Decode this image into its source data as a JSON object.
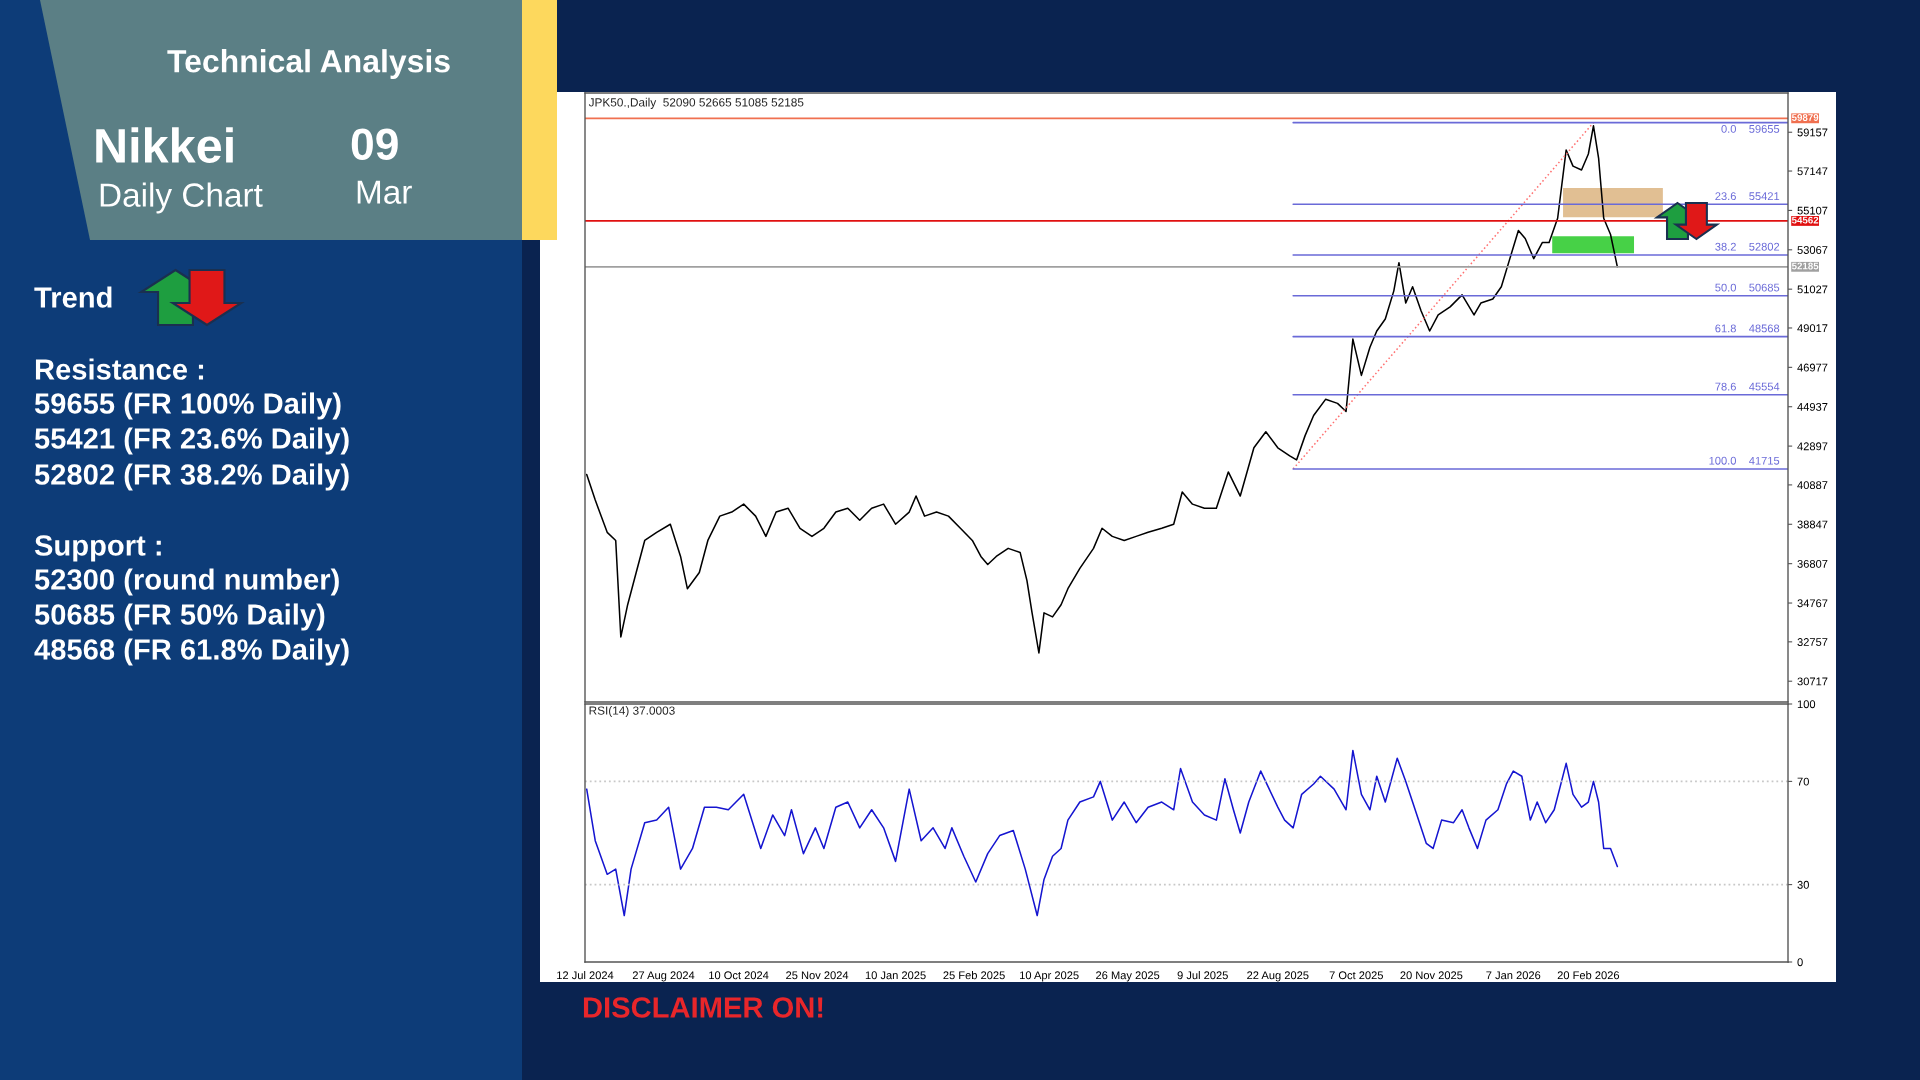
{
  "chart_data": [
    {
      "type": "other",
      "title": "Technical Analysis",
      "annotations": [
        "Nikkei",
        "Daily Chart",
        "09",
        "Mar",
        "Trend",
        "Resistance :",
        "59655 (FR 100% Daily)",
        "55421 (FR 23.6% Daily)",
        "52802 (FR 38.2% Daily)",
        "Support :",
        "52300 (round number)",
        "50685 (FR 50% Daily)",
        "48568 (FR 61.8% Daily)"
      ]
    },
    {
      "type": "line",
      "title": "JPK50.,Daily  52090 52665 51085 52185",
      "tick_labels": "y",
      "xlim": [
        "2024-07-12",
        "2026-06-17"
      ],
      "ylim": [
        29640,
        61190
      ],
      "yticks": [
        30717,
        32757,
        34767,
        36807,
        38847,
        40887,
        42897,
        44937,
        46977,
        49017,
        51027,
        53067,
        55107,
        57147,
        59157
      ],
      "series": [
        {
          "type": "line",
          "color": "#000000",
          "line_style": "solid",
          "x": [
            "2024-07-13",
            "2024-07-18",
            "2024-07-25",
            "2024-07-30",
            "2024-08-02",
            "2024-08-06",
            "2024-08-11",
            "2024-08-16",
            "2024-08-23",
            "2024-08-31",
            "2024-09-06",
            "2024-09-10",
            "2024-09-17",
            "2024-09-22",
            "2024-09-29",
            "2024-10-06",
            "2024-10-13",
            "2024-10-20",
            "2024-10-26",
            "2024-11-01",
            "2024-11-08",
            "2024-11-15",
            "2024-11-22",
            "2024-11-29",
            "2024-12-06",
            "2024-12-13",
            "2024-12-20",
            "2024-12-27",
            "2025-01-03",
            "2025-01-10",
            "2025-01-18",
            "2025-01-22",
            "2025-01-27",
            "2025-02-03",
            "2025-02-10",
            "2025-02-17",
            "2025-02-24",
            "2025-03-01",
            "2025-03-05",
            "2025-03-10",
            "2025-03-17",
            "2025-03-24",
            "2025-03-28",
            "2025-03-31",
            "2025-04-04",
            "2025-04-07",
            "2025-04-12",
            "2025-04-17",
            "2025-04-21",
            "2025-04-28",
            "2025-05-06",
            "2025-05-11",
            "2025-05-17",
            "2025-05-24",
            "2025-05-31",
            "2025-06-07",
            "2025-06-15",
            "2025-06-22",
            "2025-06-27",
            "2025-07-03",
            "2025-07-10",
            "2025-07-17",
            "2025-07-24",
            "2025-07-31",
            "2025-08-08",
            "2025-08-15",
            "2025-08-22",
            "2025-08-29",
            "2025-09-02",
            "2025-09-07",
            "2025-09-12",
            "2025-09-19",
            "2025-09-26",
            "2025-10-01",
            "2025-10-05",
            "2025-10-10",
            "2025-10-15",
            "2025-10-19",
            "2025-10-24",
            "2025-10-29",
            "2025-11-01",
            "2025-11-05",
            "2025-11-09",
            "2025-11-14",
            "2025-11-19",
            "2025-11-24",
            "2025-12-01",
            "2025-12-08",
            "2025-12-15",
            "2025-12-19",
            "2025-12-26",
            "2025-12-31",
            "2026-01-05",
            "2026-01-10",
            "2026-01-14",
            "2026-01-19",
            "2026-01-24",
            "2026-01-28",
            "2026-02-02",
            "2026-02-07",
            "2026-02-11",
            "2026-02-16",
            "2026-02-20",
            "2026-02-23",
            "2026-02-26",
            "2026-03-01",
            "2026-03-05",
            "2026-03-09"
          ],
          "values": [
            41430,
            40100,
            38430,
            38010,
            33010,
            34680,
            36350,
            38010,
            38430,
            38850,
            37180,
            35510,
            36350,
            38010,
            39270,
            39480,
            39890,
            39270,
            38220,
            39480,
            39680,
            38640,
            38220,
            38640,
            39480,
            39680,
            39060,
            39680,
            39890,
            38850,
            39480,
            40310,
            39270,
            39480,
            39270,
            38640,
            38010,
            37180,
            36760,
            37180,
            37600,
            37390,
            35930,
            34260,
            32180,
            34260,
            34050,
            34680,
            35510,
            36560,
            37600,
            38640,
            38220,
            38010,
            38220,
            38430,
            38640,
            38850,
            40520,
            39890,
            39680,
            39680,
            41560,
            40310,
            42810,
            43640,
            42810,
            42390,
            42180,
            43440,
            44480,
            45320,
            45110,
            44690,
            48440,
            46560,
            48020,
            48860,
            49480,
            50940,
            52400,
            50310,
            51150,
            49900,
            48860,
            49690,
            50110,
            50730,
            49690,
            50310,
            50520,
            51150,
            52610,
            54070,
            53650,
            52610,
            53440,
            53440,
            54700,
            58240,
            57400,
            57200,
            58030,
            59490,
            57820,
            54700,
            53860,
            52185
          ]
        },
        {
          "type": "line",
          "color": "#ff7070",
          "line_style": "dotted",
          "x": [
            "2025-08-31",
            "2026-02-23"
          ],
          "values": [
            41715,
            59655
          ]
        },
        {
          "type": "line",
          "color": "#6a6ad8",
          "line_style": "solid",
          "name": "0.0    59655",
          "x": [
            "2025-08-31",
            "2026-06-17"
          ],
          "values": [
            59655,
            59655
          ]
        },
        {
          "type": "line",
          "color": "#6a6ad8",
          "line_style": "solid",
          "name": "23.6    55421",
          "x": [
            "2025-08-31",
            "2026-06-17"
          ],
          "values": [
            55421,
            55421
          ]
        },
        {
          "type": "line",
          "color": "#6a6ad8",
          "line_style": "solid",
          "name": "38.2    52802",
          "x": [
            "2025-08-31",
            "2026-06-17"
          ],
          "values": [
            52802,
            52802
          ]
        },
        {
          "type": "line",
          "color": "#6a6ad8",
          "line_style": "solid",
          "name": "50.0    50685",
          "x": [
            "2025-08-31",
            "2026-06-17"
          ],
          "values": [
            50685,
            50685
          ]
        },
        {
          "type": "line",
          "color": "#6a6ad8",
          "line_style": "solid",
          "name": "61.8    48568",
          "x": [
            "2025-08-31",
            "2026-06-17"
          ],
          "values": [
            48568,
            48568
          ]
        },
        {
          "type": "line",
          "color": "#6a6ad8",
          "line_style": "solid",
          "name": "78.6    45554",
          "x": [
            "2025-08-31",
            "2026-06-17"
          ],
          "values": [
            45554,
            45554
          ]
        },
        {
          "type": "line",
          "color": "#6a6ad8",
          "line_style": "solid",
          "name": "100.0    41715",
          "x": [
            "2025-08-31",
            "2026-06-17"
          ],
          "values": [
            41715,
            41715
          ]
        }
      ],
      "ref_lines": [
        {
          "axis": "y",
          "value": 59879,
          "label": "59879",
          "color": "#f07050",
          "line_style": "solid"
        },
        {
          "axis": "y",
          "value": 54562,
          "label": "54562",
          "color": "#e01010",
          "line_style": "solid"
        },
        {
          "axis": "y",
          "value": 52185,
          "label": "52185",
          "color": "#a0a0a0",
          "line_style": "solid"
        }
      ],
      "bands": [
        {
          "axis": "y",
          "from": 54747,
          "to": 56266,
          "color": "#deb887"
        },
        {
          "axis": "y",
          "from": 52894,
          "to": 53765,
          "color": "#33cc33"
        }
      ]
    },
    {
      "type": "line",
      "title": "RSI(14) 37.0003",
      "xlim": [
        "2024-07-12",
        "2026-06-17"
      ],
      "xticks": [
        {
          "value": "2024-07-12",
          "label": "12 Jul 2024"
        },
        {
          "value": "2024-08-27",
          "label": "27 Aug 2024"
        },
        {
          "value": "2024-10-10",
          "label": "10 Oct 2024"
        },
        {
          "value": "2024-11-25",
          "label": "25 Nov 2024"
        },
        {
          "value": "2025-01-10",
          "label": "10 Jan 2025"
        },
        {
          "value": "2025-02-25",
          "label": "25 Feb 2025"
        },
        {
          "value": "2025-04-10",
          "label": "10 Apr 2025"
        },
        {
          "value": "2025-05-26",
          "label": "26 May 2025"
        },
        {
          "value": "2025-07-09",
          "label": "9 Jul 2025"
        },
        {
          "value": "2025-08-22",
          "label": "22 Aug 2025"
        },
        {
          "value": "2025-10-07",
          "label": "7 Oct 2025"
        },
        {
          "value": "2025-11-20",
          "label": "20 Nov 2025"
        },
        {
          "value": "2026-01-07",
          "label": "7 Jan 2026"
        },
        {
          "value": "2026-02-20",
          "label": "20 Feb 2026"
        }
      ],
      "ylim": [
        0,
        100
      ],
      "yticks": [
        0,
        30,
        70,
        100
      ],
      "series": [
        {
          "type": "line",
          "color": "#1515d0",
          "line_style": "solid",
          "x": [
            "2024-07-13",
            "2024-07-18",
            "2024-07-25",
            "2024-07-30",
            "2024-08-04",
            "2024-08-08",
            "2024-08-16",
            "2024-08-23",
            "2024-08-30",
            "2024-09-06",
            "2024-09-13",
            "2024-09-20",
            "2024-09-27",
            "2024-10-04",
            "2024-10-13",
            "2024-10-23",
            "2024-10-30",
            "2024-11-06",
            "2024-11-10",
            "2024-11-17",
            "2024-11-24",
            "2024-11-29",
            "2024-12-06",
            "2024-12-13",
            "2024-12-20",
            "2024-12-27",
            "2025-01-03",
            "2025-01-10",
            "2025-01-18",
            "2025-01-25",
            "2025-02-01",
            "2025-02-08",
            "2025-02-12",
            "2025-02-19",
            "2025-02-26",
            "2025-03-05",
            "2025-03-12",
            "2025-03-20",
            "2025-03-27",
            "2025-04-03",
            "2025-04-07",
            "2025-04-12",
            "2025-04-17",
            "2025-04-21",
            "2025-04-28",
            "2025-05-06",
            "2025-05-10",
            "2025-05-17",
            "2025-05-24",
            "2025-05-31",
            "2025-06-07",
            "2025-06-15",
            "2025-06-22",
            "2025-06-26",
            "2025-07-03",
            "2025-07-10",
            "2025-07-17",
            "2025-07-22",
            "2025-07-27",
            "2025-07-31",
            "2025-08-05",
            "2025-08-12",
            "2025-08-17",
            "2025-08-22",
            "2025-08-26",
            "2025-08-31",
            "2025-09-05",
            "2025-09-12",
            "2025-09-16",
            "2025-09-24",
            "2025-10-01",
            "2025-10-05",
            "2025-10-10",
            "2025-10-15",
            "2025-10-19",
            "2025-10-24",
            "2025-10-31",
            "2025-11-05",
            "2025-11-09",
            "2025-11-17",
            "2025-11-21",
            "2025-11-26",
            "2025-12-03",
            "2025-12-08",
            "2025-12-12",
            "2025-12-17",
            "2025-12-22",
            "2025-12-29",
            "2026-01-03",
            "2026-01-07",
            "2026-01-12",
            "2026-01-17",
            "2026-01-21",
            "2026-01-26",
            "2026-01-31",
            "2026-02-07",
            "2026-02-11",
            "2026-02-16",
            "2026-02-20",
            "2026-02-23",
            "2026-02-26",
            "2026-03-01",
            "2026-03-05",
            "2026-03-09"
          ],
          "values": [
            67,
            47,
            34,
            36,
            18,
            36,
            54,
            55,
            60,
            36,
            44,
            60,
            60,
            59,
            65,
            44,
            57,
            49,
            59,
            42,
            52,
            44,
            60,
            62,
            52,
            59,
            52,
            39,
            67,
            47,
            52,
            44,
            52,
            41,
            31,
            42,
            49,
            51,
            36,
            18,
            32,
            41,
            44,
            55,
            62,
            64,
            70,
            55,
            62,
            54,
            60,
            62,
            59,
            75,
            62,
            57,
            55,
            71,
            59,
            50,
            62,
            74,
            67,
            60,
            55,
            52,
            65,
            69,
            72,
            67,
            59,
            82,
            65,
            59,
            72,
            62,
            79,
            70,
            62,
            46,
            44,
            55,
            54,
            59,
            52,
            44,
            55,
            59,
            69,
            74,
            72,
            55,
            62,
            54,
            59,
            77,
            65,
            60,
            62,
            70,
            62,
            44,
            44,
            37
          ]
        }
      ],
      "ref_lines": [
        {
          "axis": "y",
          "value": 70,
          "color": "#c8c8c8",
          "line_style": "dotted"
        },
        {
          "axis": "y",
          "value": 30,
          "color": "#c8c8c8",
          "line_style": "dotted"
        }
      ],
      "annotations": [
        "DISCLAIMER ON!"
      ]
    }
  ]
}
